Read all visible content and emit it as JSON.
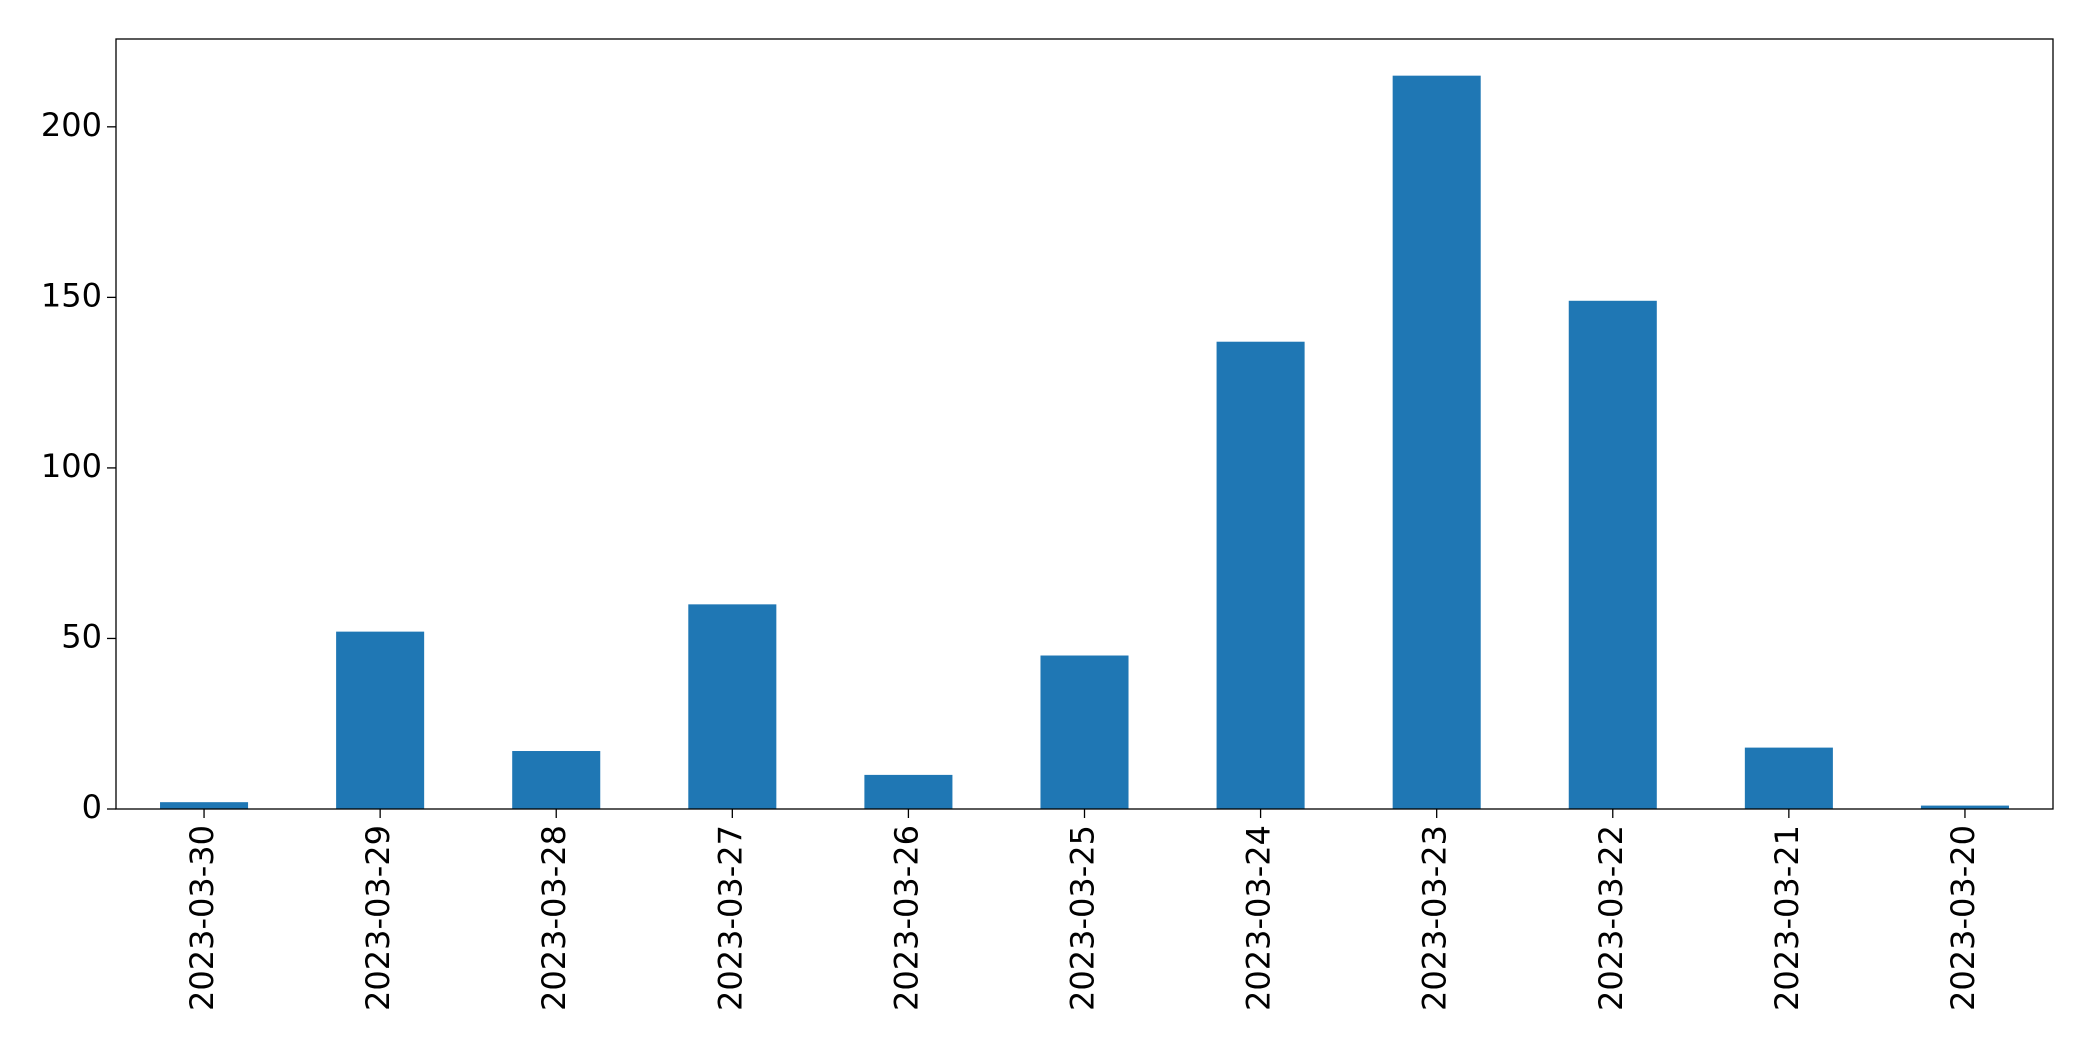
{
  "chart_data": {
    "type": "bar",
    "categories": [
      "2023-03-30",
      "2023-03-29",
      "2023-03-28",
      "2023-03-27",
      "2023-03-26",
      "2023-03-25",
      "2023-03-24",
      "2023-03-23",
      "2023-03-22",
      "2023-03-21",
      "2023-03-20"
    ],
    "values": [
      2,
      52,
      17,
      60,
      10,
      45,
      137,
      215,
      149,
      18,
      1
    ],
    "color": "#1f77b4",
    "ylim": [
      0,
      225.75
    ],
    "yticks": [
      0,
      50,
      100,
      150,
      200
    ],
    "grid": false
  }
}
